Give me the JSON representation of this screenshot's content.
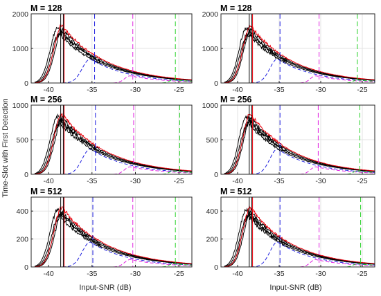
{
  "figure": {
    "ylabel": "Time-Slot with First Detection",
    "xlabel": "Input-SNR (dB)"
  },
  "chart_data": [
    {
      "type": "line",
      "title": "M = 128",
      "xlim": [
        -42,
        -23.5
      ],
      "ylim": [
        0,
        2000
      ],
      "xticks": [
        -40,
        -35,
        -30,
        -25
      ],
      "yticks": [
        0,
        1000,
        2000
      ],
      "peak": 1480,
      "grid": true,
      "vlines": [
        {
          "x": -38.6,
          "color": "black",
          "style": "solid"
        },
        {
          "x": -38.3,
          "color": "black",
          "style": "solid"
        },
        {
          "x": -38.2,
          "color": "red",
          "style": "solid"
        },
        {
          "x": -34.7,
          "color": "blue",
          "style": "dashed"
        },
        {
          "x": -30.3,
          "color": "magenta",
          "style": "dashed"
        },
        {
          "x": -25.4,
          "color": "green",
          "style": "dashed"
        }
      ]
    },
    {
      "type": "line",
      "title": "M = 128",
      "xlim": [
        -42,
        -23.5
      ],
      "ylim": [
        0,
        2000
      ],
      "xticks": [
        -40,
        -35,
        -30,
        -25
      ],
      "yticks": [
        0,
        1000,
        2000
      ],
      "peak": 1480,
      "grid": true,
      "vlines": [
        {
          "x": -38.6,
          "color": "black",
          "style": "solid"
        },
        {
          "x": -38.3,
          "color": "black",
          "style": "solid"
        },
        {
          "x": -38.2,
          "color": "red",
          "style": "solid"
        },
        {
          "x": -34.9,
          "color": "blue",
          "style": "dashed"
        },
        {
          "x": -30.2,
          "color": "magenta",
          "style": "dashed"
        },
        {
          "x": -25.6,
          "color": "green",
          "style": "dashed"
        }
      ]
    },
    {
      "type": "line",
      "title": "M = 256",
      "xlim": [
        -42,
        -23.5
      ],
      "ylim": [
        0,
        1000
      ],
      "xticks": [
        -40,
        -35,
        -30,
        -25
      ],
      "yticks": [
        0,
        500,
        1000
      ],
      "peak": 780,
      "grid": true,
      "vlines": [
        {
          "x": -38.6,
          "color": "black",
          "style": "solid"
        },
        {
          "x": -38.3,
          "color": "black",
          "style": "solid"
        },
        {
          "x": -38.2,
          "color": "red",
          "style": "solid"
        },
        {
          "x": -34.6,
          "color": "blue",
          "style": "dashed"
        },
        {
          "x": -30.2,
          "color": "magenta",
          "style": "dashed"
        },
        {
          "x": -24.9,
          "color": "green",
          "style": "dashed"
        }
      ]
    },
    {
      "type": "line",
      "title": "M = 256",
      "xlim": [
        -42,
        -23.5
      ],
      "ylim": [
        0,
        1000
      ],
      "xticks": [
        -40,
        -35,
        -30,
        -25
      ],
      "yticks": [
        0,
        500,
        1000
      ],
      "peak": 780,
      "grid": true,
      "vlines": [
        {
          "x": -38.6,
          "color": "black",
          "style": "solid"
        },
        {
          "x": -38.3,
          "color": "black",
          "style": "solid"
        },
        {
          "x": -38.2,
          "color": "red",
          "style": "solid"
        },
        {
          "x": -34.9,
          "color": "blue",
          "style": "dashed"
        },
        {
          "x": -30.3,
          "color": "magenta",
          "style": "dashed"
        },
        {
          "x": -25.3,
          "color": "green",
          "style": "dashed"
        }
      ]
    },
    {
      "type": "line",
      "title": "M = 512",
      "xlim": [
        -42,
        -23.5
      ],
      "ylim": [
        0,
        500
      ],
      "xticks": [
        -40,
        -35,
        -30,
        -25
      ],
      "yticks": [
        0,
        200,
        400
      ],
      "peak": 380,
      "grid": true,
      "vlines": [
        {
          "x": -38.6,
          "color": "black",
          "style": "solid"
        },
        {
          "x": -38.3,
          "color": "black",
          "style": "solid"
        },
        {
          "x": -38.2,
          "color": "red",
          "style": "solid"
        },
        {
          "x": -34.9,
          "color": "blue",
          "style": "dashed"
        },
        {
          "x": -30.3,
          "color": "magenta",
          "style": "dashed"
        },
        {
          "x": -25.4,
          "color": "green",
          "style": "dashed"
        }
      ]
    },
    {
      "type": "line",
      "title": "M = 512",
      "xlim": [
        -42,
        -23.5
      ],
      "ylim": [
        0,
        500
      ],
      "xticks": [
        -40,
        -35,
        -30,
        -25
      ],
      "yticks": [
        0,
        200,
        400
      ],
      "peak": 380,
      "grid": true,
      "vlines": [
        {
          "x": -38.6,
          "color": "black",
          "style": "solid"
        },
        {
          "x": -38.3,
          "color": "black",
          "style": "solid"
        },
        {
          "x": -38.2,
          "color": "red",
          "style": "solid"
        },
        {
          "x": -34.9,
          "color": "blue",
          "style": "dashed"
        },
        {
          "x": -30.2,
          "color": "magenta",
          "style": "dashed"
        },
        {
          "x": -25.2,
          "color": "green",
          "style": "dashed"
        }
      ]
    }
  ],
  "colors": {
    "black": "#000000",
    "red": "#e8000b",
    "blue": "#1f1fdf",
    "magenta": "#e020e0",
    "green": "#20d020",
    "grid": "#e3e3e3",
    "axis": "#262626"
  }
}
